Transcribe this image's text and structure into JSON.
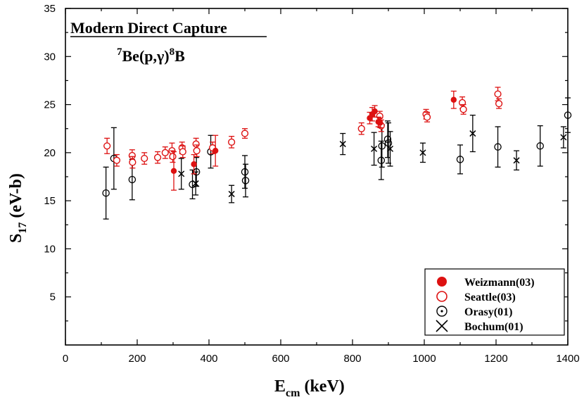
{
  "chart_data": {
    "type": "scatter",
    "title": "Modern Direct Capture",
    "subtitle": {
      "sup1": "7",
      "part1": "Be(p,",
      "gamma": "γ",
      "part2": ")",
      "sup2": "8",
      "part3": "B"
    },
    "xlabel": {
      "main": "E",
      "sub": "cm",
      "unit": " (keV)"
    },
    "ylabel": {
      "main": "S",
      "sub": "17",
      "unit": " (eV-b)"
    },
    "xlim": [
      0,
      1400
    ],
    "ylim": [
      0,
      35
    ],
    "x_ticks": [
      "0",
      "200",
      "400",
      "600",
      "800",
      "1000",
      "1200",
      "1400"
    ],
    "y_ticks": [
      "5",
      "10",
      "15",
      "20",
      "25",
      "30",
      "35"
    ],
    "colors": {
      "weizmann": "#dd1111",
      "seattle": "#dd1111",
      "orsay": "#000000",
      "bochum": "#000000"
    },
    "legend": {
      "position": "bottom-right",
      "entries": [
        "Weizmann(03)",
        "Seattle(03)",
        "Orasy(01)",
        "Bochum(01)"
      ]
    },
    "series": [
      {
        "name": "Weizmann(03)",
        "marker": "filled-circle",
        "points": [
          {
            "x": 302,
            "y": 18.1,
            "err": 2.0
          },
          {
            "x": 358,
            "y": 18.8,
            "err": 1.0
          },
          {
            "x": 418,
            "y": 20.2,
            "err": 1.6
          },
          {
            "x": 848,
            "y": 23.6,
            "err": 0.6
          },
          {
            "x": 855,
            "y": 24.0,
            "err": 0.7
          },
          {
            "x": 862,
            "y": 24.3,
            "err": 0.6
          },
          {
            "x": 872,
            "y": 23.2,
            "err": 0.5
          },
          {
            "x": 877,
            "y": 23.1,
            "err": 0.5
          },
          {
            "x": 1082,
            "y": 25.5,
            "err": 0.9
          }
        ]
      },
      {
        "name": "Seattle(03)",
        "marker": "open-circle",
        "points": [
          {
            "x": 116,
            "y": 20.7,
            "err": 0.8
          },
          {
            "x": 143,
            "y": 19.2,
            "err": 0.6
          },
          {
            "x": 186,
            "y": 19.7,
            "err": 0.6
          },
          {
            "x": 187,
            "y": 19.0,
            "err": 0.6
          },
          {
            "x": 220,
            "y": 19.4,
            "err": 0.6
          },
          {
            "x": 257,
            "y": 19.5,
            "err": 0.6
          },
          {
            "x": 278,
            "y": 20.0,
            "err": 0.6
          },
          {
            "x": 297,
            "y": 20.2,
            "err": 0.8
          },
          {
            "x": 299,
            "y": 19.6,
            "err": 0.6
          },
          {
            "x": 325,
            "y": 20.5,
            "err": 0.6
          },
          {
            "x": 327,
            "y": 20.1,
            "err": 0.6
          },
          {
            "x": 364,
            "y": 20.9,
            "err": 0.6
          },
          {
            "x": 366,
            "y": 20.2,
            "err": 0.6
          },
          {
            "x": 410,
            "y": 20.5,
            "err": 0.6
          },
          {
            "x": 463,
            "y": 21.1,
            "err": 0.6
          },
          {
            "x": 500,
            "y": 22.0,
            "err": 0.5
          },
          {
            "x": 825,
            "y": 22.5,
            "err": 0.6
          },
          {
            "x": 876,
            "y": 23.8,
            "err": 0.5
          },
          {
            "x": 880,
            "y": 22.8,
            "err": 0.6
          },
          {
            "x": 1005,
            "y": 24.0,
            "err": 0.5
          },
          {
            "x": 1008,
            "y": 23.7,
            "err": 0.5
          },
          {
            "x": 1106,
            "y": 25.2,
            "err": 0.6
          },
          {
            "x": 1109,
            "y": 24.5,
            "err": 0.5
          },
          {
            "x": 1205,
            "y": 26.1,
            "err": 0.7
          },
          {
            "x": 1208,
            "y": 25.1,
            "err": 0.5
          }
        ]
      },
      {
        "name": "Orasy(01)",
        "marker": "dot-circle",
        "points": [
          {
            "x": 113,
            "y": 15.8,
            "err": 2.7
          },
          {
            "x": 135,
            "y": 19.4,
            "err": 3.2
          },
          {
            "x": 186,
            "y": 17.2,
            "err": 2.1
          },
          {
            "x": 354,
            "y": 16.7,
            "err": 1.5
          },
          {
            "x": 365,
            "y": 18.0,
            "err": 1.5
          },
          {
            "x": 405,
            "y": 20.1,
            "err": 1.7
          },
          {
            "x": 500,
            "y": 18.0,
            "err": 1.7
          },
          {
            "x": 502,
            "y": 17.1,
            "err": 1.7
          },
          {
            "x": 880,
            "y": 19.2,
            "err": 2.0
          },
          {
            "x": 882,
            "y": 20.7,
            "err": 2.2
          },
          {
            "x": 898,
            "y": 21.4,
            "err": 1.9
          },
          {
            "x": 900,
            "y": 21.0,
            "err": 2.1
          },
          {
            "x": 1100,
            "y": 19.3,
            "err": 1.5
          },
          {
            "x": 1205,
            "y": 20.6,
            "err": 2.1
          },
          {
            "x": 1323,
            "y": 20.7,
            "err": 2.1
          },
          {
            "x": 1400,
            "y": 23.9,
            "err": 1.8
          }
        ]
      },
      {
        "name": "Bochum(01)",
        "marker": "cross",
        "points": [
          {
            "x": 323,
            "y": 17.8,
            "err": 1.6
          },
          {
            "x": 363,
            "y": 16.8,
            "err": 1.2
          },
          {
            "x": 463,
            "y": 15.7,
            "err": 0.9
          },
          {
            "x": 773,
            "y": 20.9,
            "err": 1.1
          },
          {
            "x": 860,
            "y": 20.4,
            "err": 1.7
          },
          {
            "x": 905,
            "y": 20.4,
            "err": 1.8
          },
          {
            "x": 996,
            "y": 20.0,
            "err": 1.0
          },
          {
            "x": 1135,
            "y": 22.0,
            "err": 1.9
          },
          {
            "x": 1257,
            "y": 19.2,
            "err": 1.0
          },
          {
            "x": 1388,
            "y": 21.6,
            "err": 1.1
          }
        ]
      }
    ]
  }
}
